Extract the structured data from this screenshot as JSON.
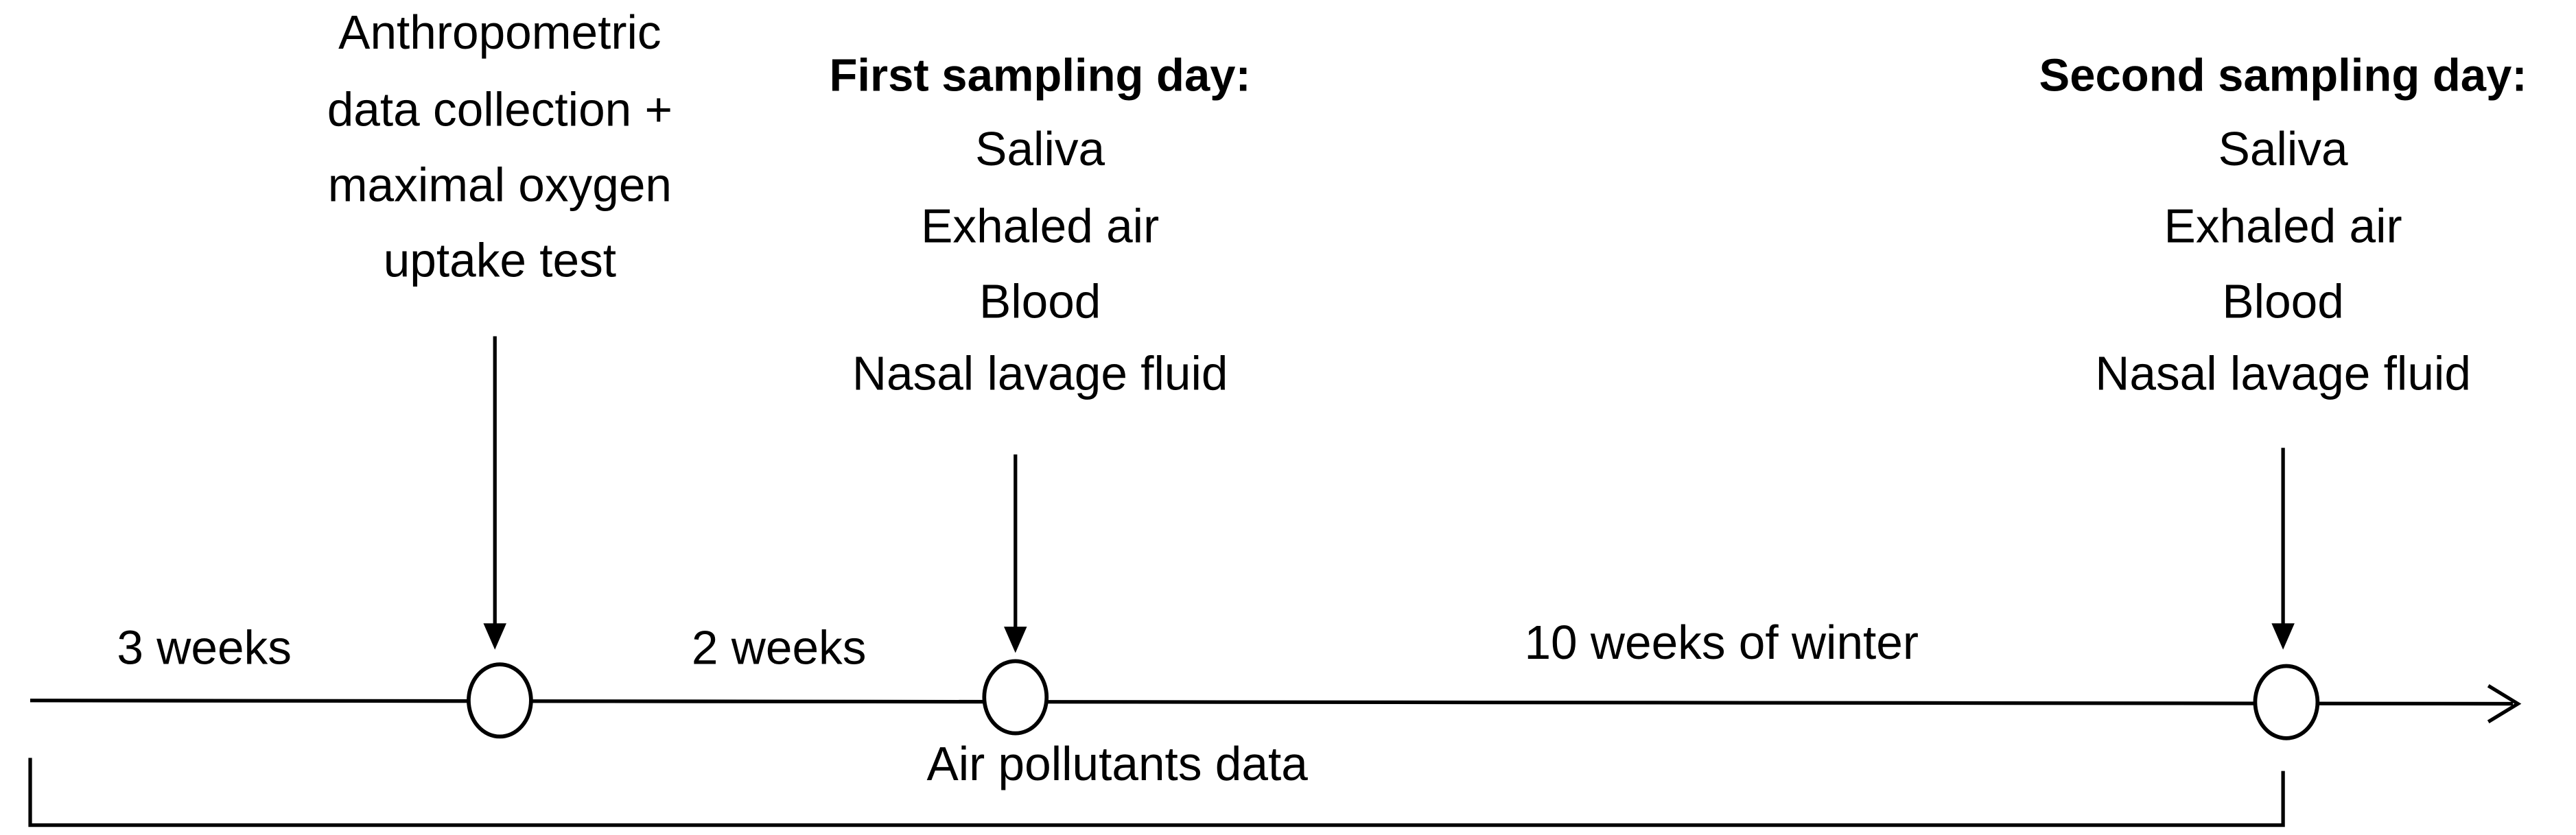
{
  "events": [
    {
      "lines": [
        "Anthropometric",
        "data collection +",
        "maximal oxygen",
        "uptake test"
      ]
    },
    {
      "heading": "First sampling day:",
      "lines": [
        "Saliva",
        "Exhaled air",
        "Blood",
        "Nasal lavage fluid"
      ]
    },
    {
      "heading": "Second sampling day:",
      "lines": [
        "Saliva",
        "Exhaled air",
        "Blood",
        "Nasal lavage fluid"
      ]
    }
  ],
  "intervals": [
    "3 weeks",
    "2 weeks",
    "10 weeks of winter"
  ],
  "bracket_label": "Air pollutants data"
}
